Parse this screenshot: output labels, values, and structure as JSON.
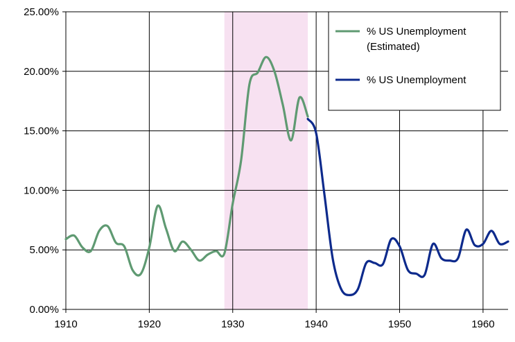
{
  "chart_data": {
    "type": "line",
    "title": "",
    "xlabel": "",
    "ylabel": "",
    "xlim": [
      1910,
      1963
    ],
    "ylim": [
      0,
      25
    ],
    "x_ticks": [
      1910,
      1920,
      1930,
      1940,
      1950,
      1960
    ],
    "x_tick_labels": [
      "1910",
      "1920",
      "1930",
      "1940",
      "1950",
      "1960"
    ],
    "y_ticks": [
      0,
      5,
      10,
      15,
      20,
      25
    ],
    "y_tick_labels": [
      "0.00%",
      "5.00%",
      "10.00%",
      "15.00%",
      "20.00%",
      "25.00%"
    ],
    "grid": true,
    "legend_position": "top-right",
    "shaded_region": {
      "x_start": 1929,
      "x_end": 1939,
      "color": "#f7e1f1"
    },
    "series": [
      {
        "name": "% US Unemployment (Estimated)",
        "legend_lines": [
          "% US Unemployment",
          "(Estimated)"
        ],
        "color": "#5f9a72",
        "x": [
          1910,
          1911,
          1912,
          1913,
          1914,
          1915,
          1916,
          1917,
          1918,
          1919,
          1920,
          1921,
          1922,
          1923,
          1924,
          1925,
          1926,
          1927,
          1928,
          1929,
          1930,
          1931,
          1932,
          1933,
          1934,
          1935,
          1936,
          1937,
          1938,
          1939
        ],
        "values": [
          5.9,
          6.2,
          5.2,
          4.9,
          6.6,
          7.0,
          5.6,
          5.3,
          3.3,
          3.0,
          5.2,
          8.7,
          6.8,
          4.9,
          5.7,
          5.0,
          4.1,
          4.6,
          4.9,
          4.7,
          8.9,
          12.5,
          18.9,
          19.9,
          21.2,
          20.0,
          17.2,
          14.2,
          17.8,
          16.2
        ]
      },
      {
        "name": "% US Unemployment",
        "legend_lines": [
          "% US Unemployment"
        ],
        "color": "#0d2a8c",
        "x": [
          1939,
          1940,
          1941,
          1942,
          1943,
          1944,
          1945,
          1946,
          1947,
          1948,
          1949,
          1950,
          1951,
          1952,
          1953,
          1954,
          1955,
          1956,
          1957,
          1958,
          1959,
          1960,
          1961,
          1962,
          1963
        ],
        "values": [
          16.0,
          14.8,
          9.6,
          4.2,
          1.7,
          1.2,
          1.7,
          3.9,
          3.9,
          3.8,
          5.9,
          5.3,
          3.3,
          3.0,
          2.9,
          5.5,
          4.3,
          4.1,
          4.3,
          6.7,
          5.4,
          5.5,
          6.6,
          5.5,
          5.7
        ]
      }
    ]
  }
}
